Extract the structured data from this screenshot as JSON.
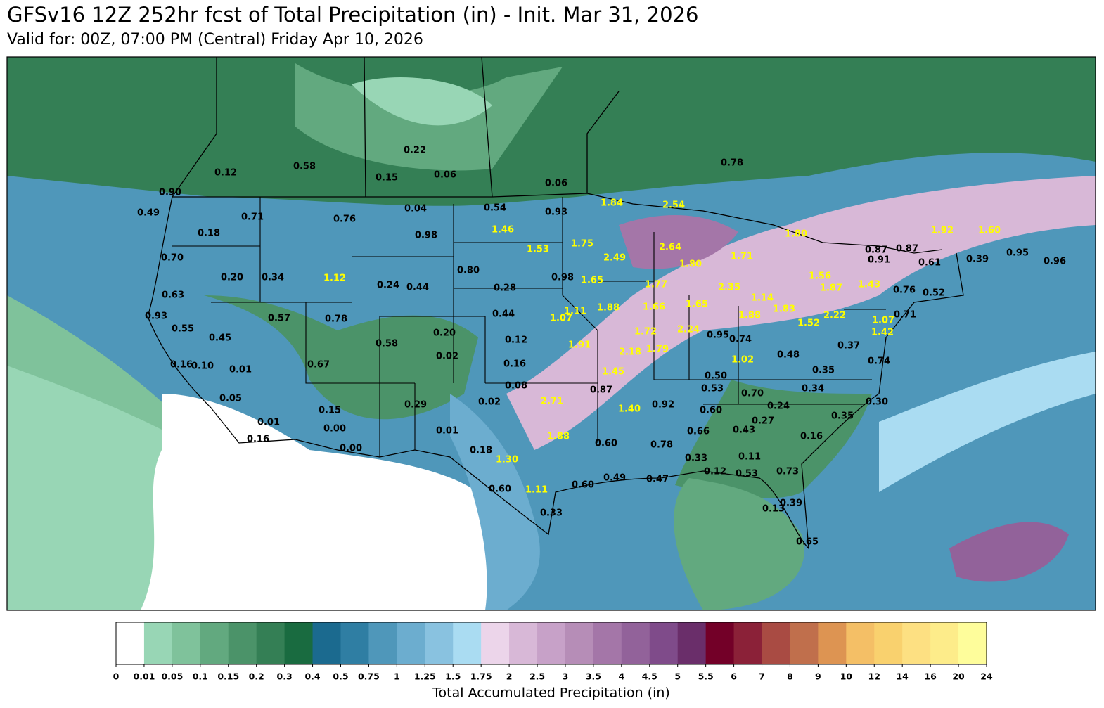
{
  "header": {
    "title": "GFSv16 12Z 252hr fcst of Total Precipitation (in) - Init. Mar 31, 2026",
    "subtitle": "Valid for: 00Z, 07:00 PM (Central) Friday Apr 10, 2026"
  },
  "map": {
    "high_color": "#ffff00",
    "low_color": "#000000",
    "point_labels": [
      "0.22",
      "0.58",
      "0.12",
      "0.15",
      "0.06",
      "0.06",
      "0.78",
      "0.90",
      "0.04",
      "0.54",
      "0.93",
      "1.84",
      "2.54",
      "0.49",
      "0.71",
      "0.76",
      "0.18",
      "0.98",
      "1.46",
      "1.53",
      "1.75",
      "2.49",
      "2.64",
      "1.80",
      "1.71",
      "1.80",
      "1.92",
      "1.60",
      "0.87",
      "0.87",
      "0.91",
      "0.95",
      "0.61",
      "0.39",
      "0.96",
      "0.70",
      "0.20",
      "0.34",
      "1.12",
      "0.80",
      "0.98",
      "1.65",
      "1.77",
      "2.35",
      "1.56",
      "1.87",
      "1.43",
      "0.76",
      "0.52",
      "0.63",
      "0.24",
      "0.44",
      "0.28",
      "1.14",
      "1.65",
      "1.88",
      "1.66",
      "1.11",
      "1.07",
      "0.44",
      "1.88",
      "1.83",
      "0.71",
      "2.22",
      "1.52",
      "1.07",
      "0.93",
      "0.57",
      "0.78",
      "0.55",
      "0.45",
      "0.20",
      "0.12",
      "1.72",
      "2.24",
      "0.95",
      "0.74",
      "1.42",
      "1.91",
      "2.18",
      "1.79",
      "0.58",
      "0.02",
      "0.37",
      "0.48",
      "1.02",
      "0.74",
      "0.16",
      "0.10",
      "0.01",
      "0.67",
      "0.16",
      "1.45",
      "0.50",
      "0.35",
      "0.08",
      "0.87",
      "0.53",
      "0.70",
      "0.34",
      "0.05",
      "2.71",
      "0.02",
      "0.29",
      "0.15",
      "1.40",
      "0.92",
      "0.60",
      "0.24",
      "0.30",
      "0.01",
      "0.00",
      "0.01",
      "0.66",
      "0.43",
      "0.27",
      "0.35",
      "0.16",
      "0.00",
      "0.18",
      "1.88",
      "0.60",
      "0.78",
      "0.16",
      "1.30",
      "0.33",
      "0.11",
      "0.12",
      "0.53",
      "0.73",
      "0.60",
      "1.11",
      "0.60",
      "0.49",
      "0.47",
      "0.13",
      "0.39",
      "0.33",
      "0.65"
    ]
  },
  "colorbar": {
    "label": "Total Accumulated Precipitation (in)",
    "ticks": [
      0,
      0.01,
      0.05,
      0.1,
      0.15,
      0.2,
      0.3,
      0.4,
      0.5,
      0.75,
      1,
      1.25,
      1.5,
      1.75,
      2,
      2.5,
      3,
      3.5,
      4,
      4.5,
      5,
      5.5,
      6,
      7,
      8,
      9,
      10,
      12,
      14,
      16,
      20,
      24
    ],
    "colors": [
      "#ffffff",
      "#98d6b5",
      "#7fc29b",
      "#62a97f",
      "#4b9369",
      "#347f55",
      "#196b40",
      "#1b6a8f",
      "#2f7ea3",
      "#4f97ba",
      "#6cadcf",
      "#89c2e0",
      "#aadcf2",
      "#ecd5ea",
      "#d8b8d7",
      "#c7a1c8",
      "#b68db7",
      "#a476a8",
      "#92629a",
      "#7f4b8a",
      "#6a2e6a",
      "#730028",
      "#8b2138",
      "#a94b43",
      "#c06f4c",
      "#dd9452",
      "#f4bf66",
      "#f9d16e",
      "#fde082",
      "#fdec8a",
      "#fefd9b"
    ]
  }
}
